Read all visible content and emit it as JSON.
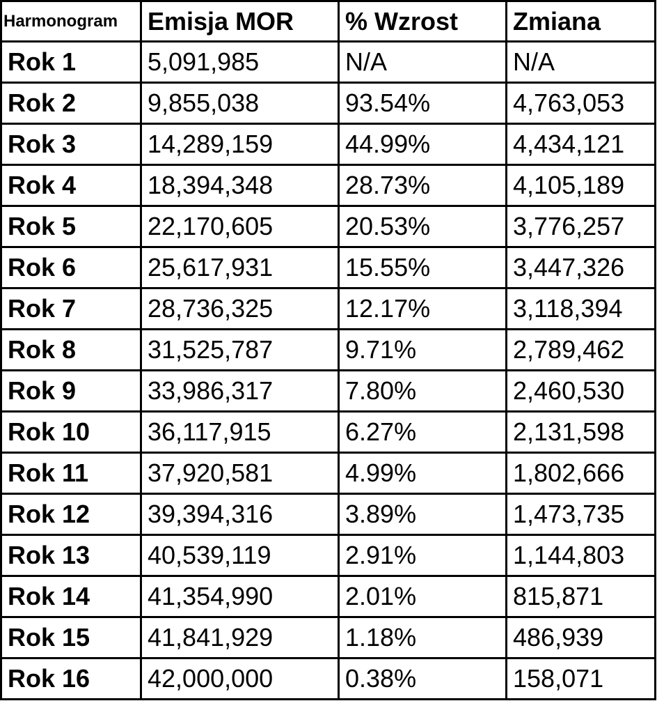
{
  "chart_data": {
    "type": "table",
    "columns": [
      "Harmonogram",
      "Emisja MOR",
      "% Wzrost",
      "Zmiana"
    ],
    "rows": [
      [
        "Rok 1",
        "5,091,985",
        "N/A",
        "N/A"
      ],
      [
        "Rok 2",
        "9,855,038",
        "93.54%",
        "4,763,053"
      ],
      [
        "Rok 3",
        "14,289,159",
        "44.99%",
        "4,434,121"
      ],
      [
        "Rok 4",
        "18,394,348",
        "28.73%",
        "4,105,189"
      ],
      [
        "Rok 5",
        "22,170,605",
        "20.53%",
        "3,776,257"
      ],
      [
        "Rok 6",
        "25,617,931",
        "15.55%",
        "3,447,326"
      ],
      [
        "Rok 7",
        "28,736,325",
        "12.17%",
        "3,118,394"
      ],
      [
        "Rok 8",
        "31,525,787",
        "9.71%",
        "2,789,462"
      ],
      [
        "Rok 9",
        "33,986,317",
        "7.80%",
        "2,460,530"
      ],
      [
        "Rok 10",
        "36,117,915",
        "6.27%",
        "2,131,598"
      ],
      [
        "Rok 11",
        "37,920,581",
        "4.99%",
        "1,802,666"
      ],
      [
        "Rok 12",
        "39,394,316",
        "3.89%",
        "1,473,735"
      ],
      [
        "Rok 13",
        "40,539,119",
        "2.91%",
        "1,144,803"
      ],
      [
        "Rok 14",
        "41,354,990",
        "2.01%",
        "815,871"
      ],
      [
        "Rok 15",
        "41,841,929",
        "1.18%",
        "486,939"
      ],
      [
        "Rok 16",
        "42,000,000",
        "0.38%",
        "158,071"
      ]
    ]
  }
}
